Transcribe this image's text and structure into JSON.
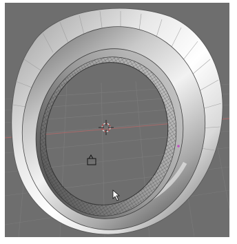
{
  "viewport": {
    "view_type": "3d-perspective",
    "background_color": "#6e6e6e",
    "grid_color": "#7c7c7c",
    "x_axis_color": "#b06a6a",
    "y_axis_color": "#7fa07f",
    "object": {
      "name_icon": "torus-ring-mesh",
      "shading": "solid",
      "light_color": "#f4f4f4",
      "shadow_color": "#3a3a3a"
    },
    "cursor_3d_icon": "3d-cursor-crosshair",
    "camera_icon": "camera-icon",
    "mouse_pointer_icon": "arrow-pointer-icon",
    "selected_vertex_color": "#c050c0"
  }
}
